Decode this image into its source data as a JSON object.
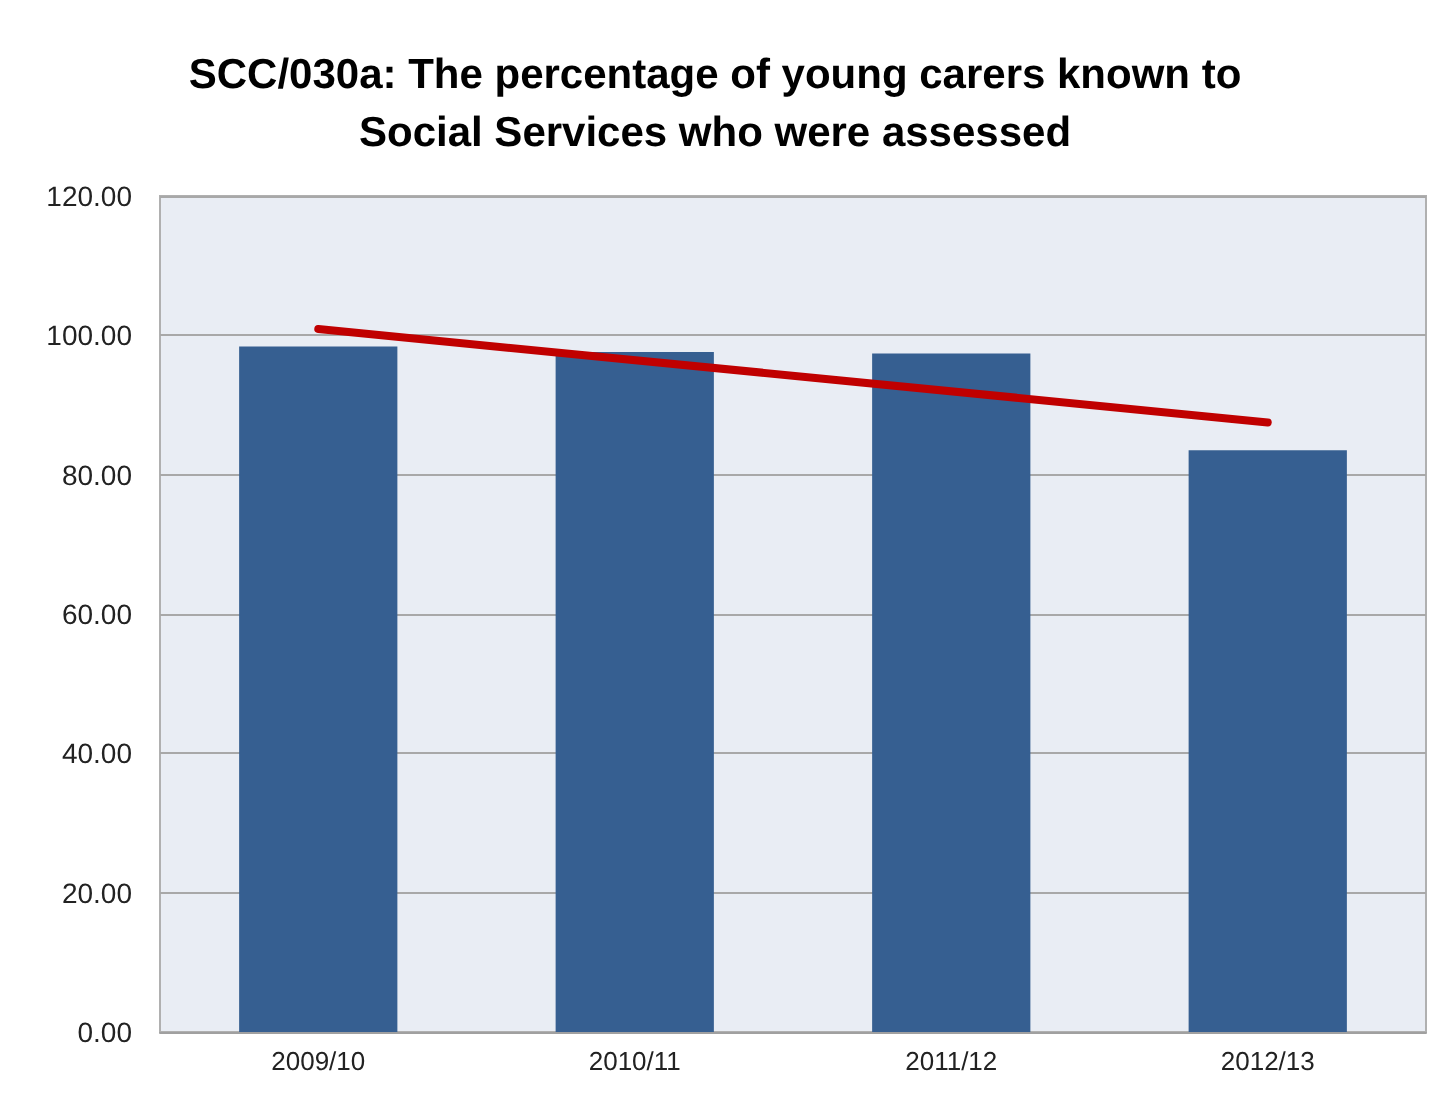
{
  "chart_data": {
    "type": "bar",
    "title": "SCC/030a: The percentage of young carers known to\nSocial Services who were assessed",
    "categories": [
      "2009/10",
      "2010/11",
      "2011/12",
      "2012/13"
    ],
    "series": [
      {
        "color": "#365f91",
        "values": [
          98.4,
          97.6,
          97.4,
          83.5
        ]
      },
      {
        "type": "line",
        "color": "#c00000",
        "x": [
          "2009/10",
          "2012/13"
        ],
        "values": [
          100.9,
          87.5
        ],
        "marker": "none"
      }
    ],
    "ylim": [
      0,
      120
    ],
    "yticks": [
      {
        "value": 0,
        "label": "0.00"
      },
      {
        "value": 20,
        "label": "20.00"
      },
      {
        "value": 40,
        "label": "40.00"
      },
      {
        "value": 60,
        "label": "60.00"
      },
      {
        "value": 80,
        "label": "80.00"
      },
      {
        "value": 100,
        "label": "100.00"
      },
      {
        "value": 120,
        "label": "120.00"
      }
    ],
    "grid": "y"
  }
}
